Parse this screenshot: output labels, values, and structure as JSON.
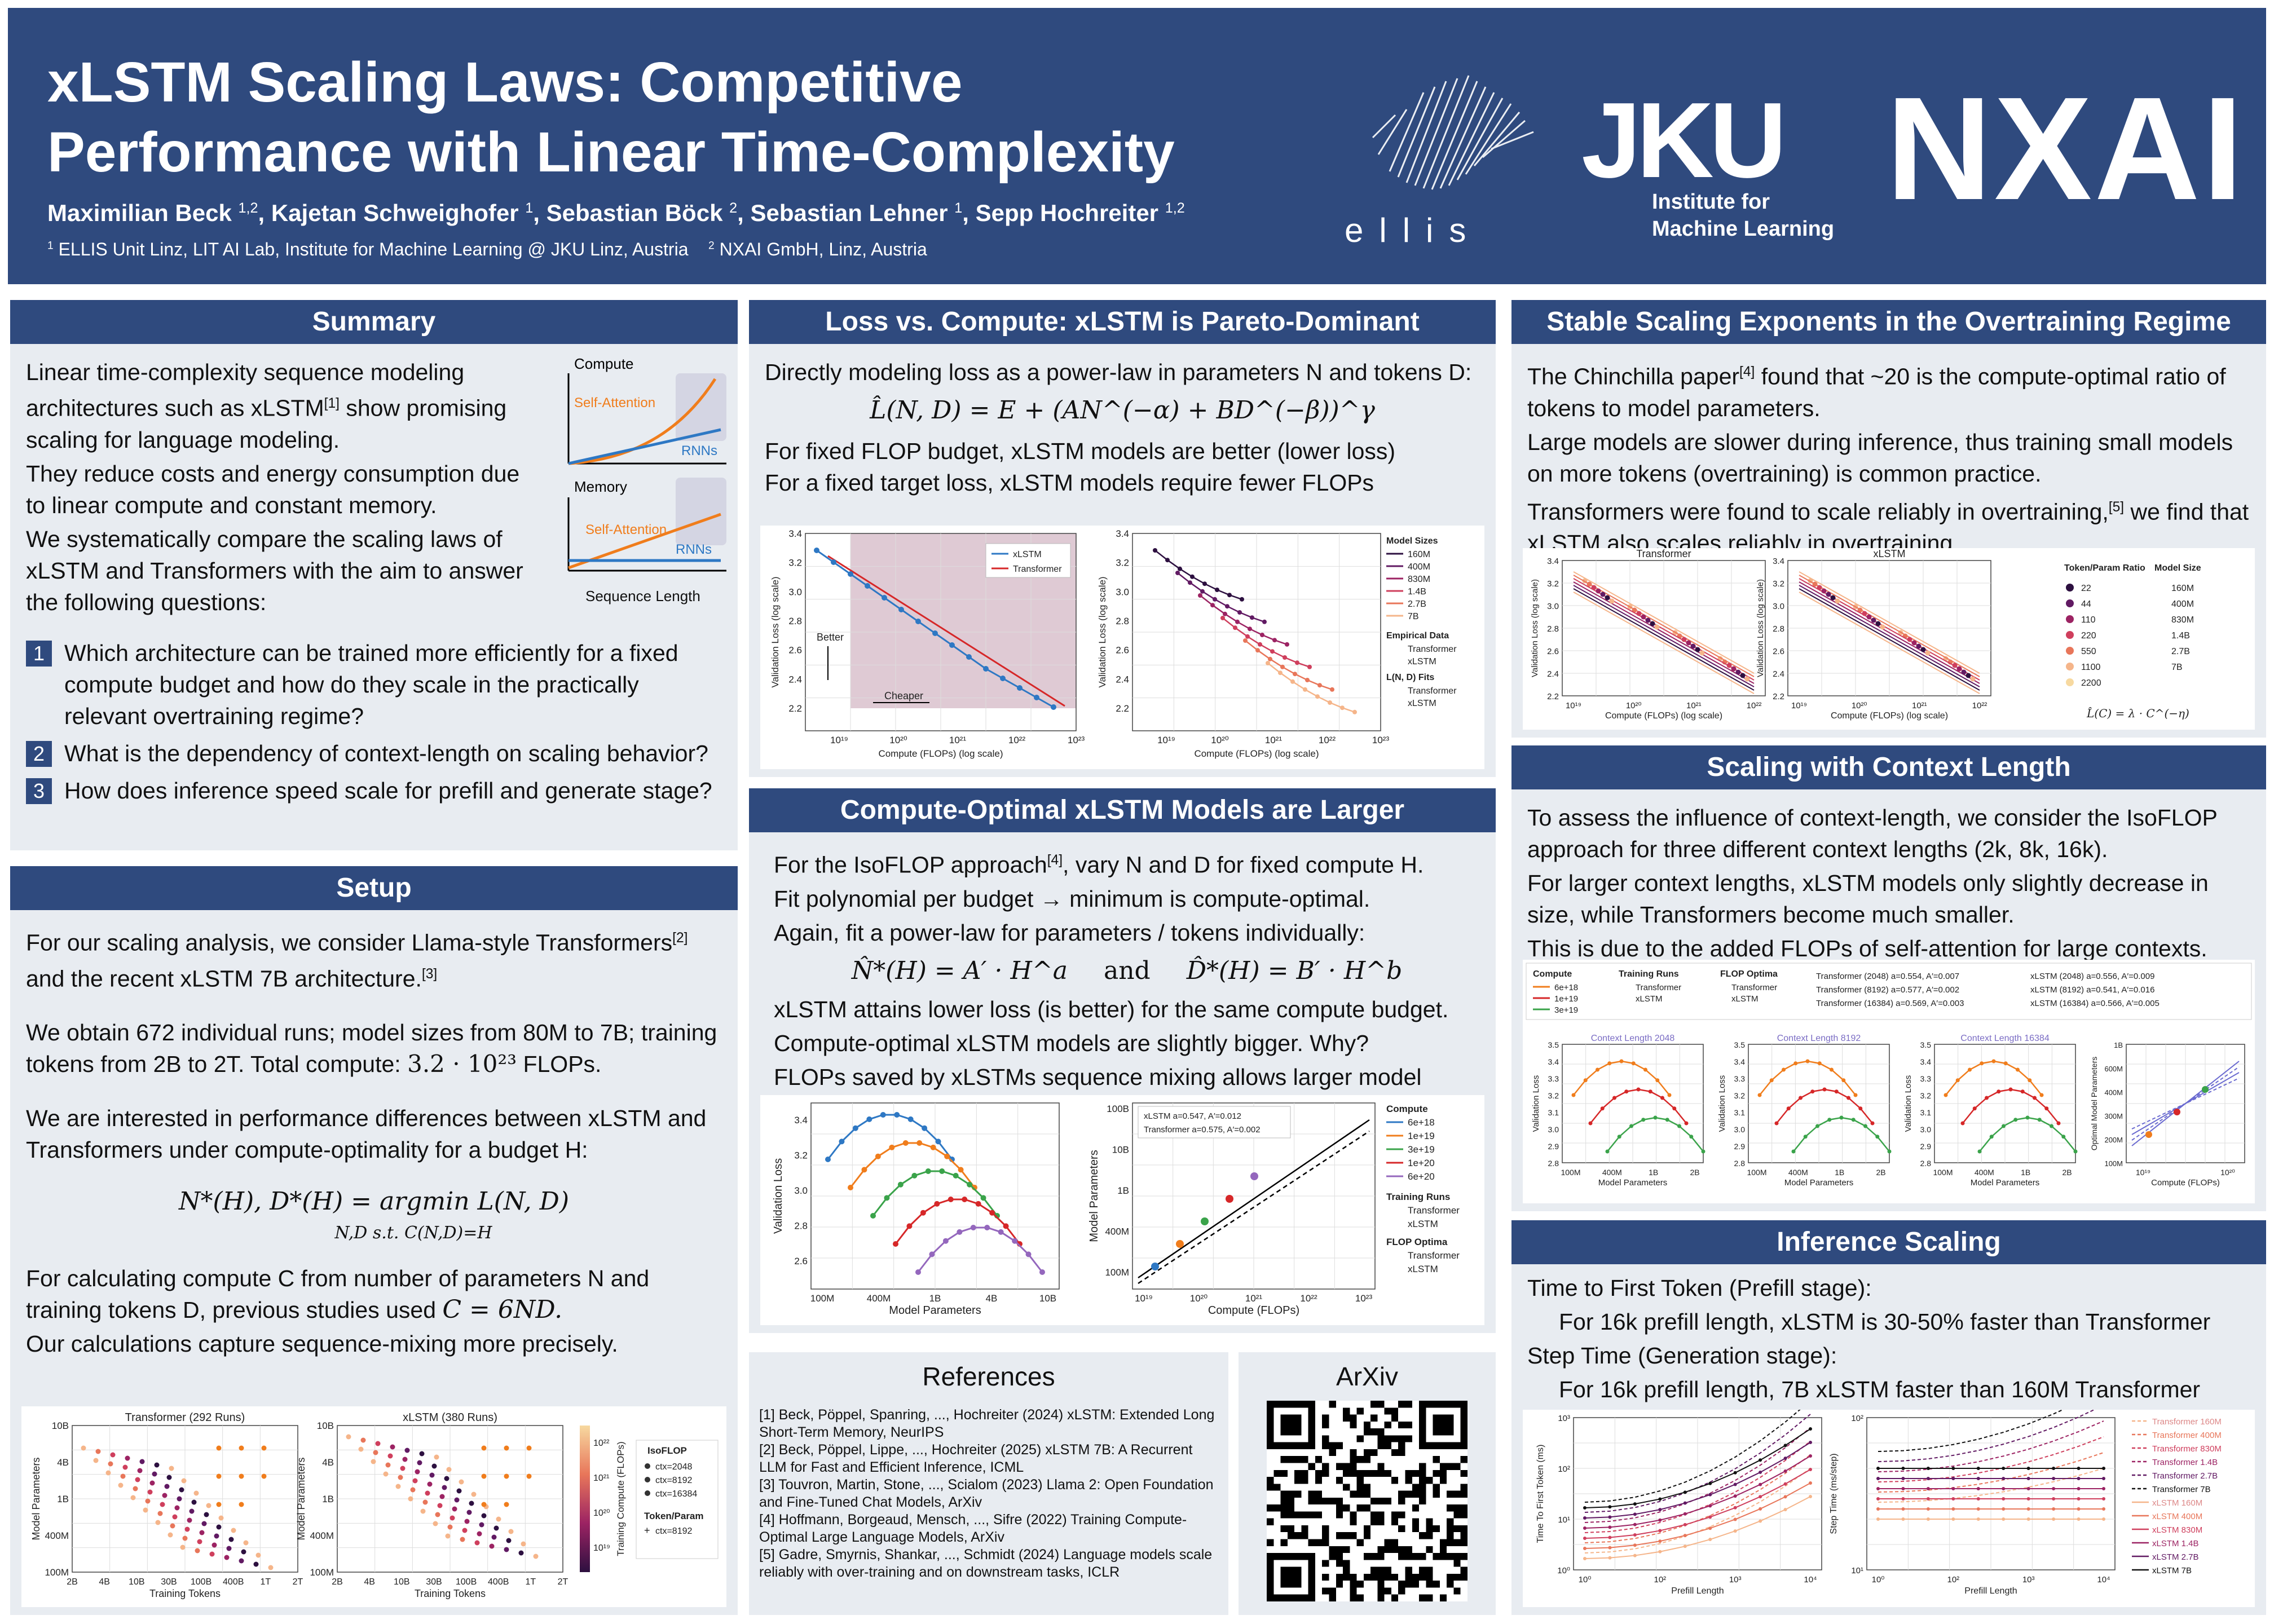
{
  "header": {
    "title_line1": "xLSTM Scaling Laws: Competitive",
    "title_line2": "Performance with Linear Time-Complexity",
    "authors": [
      {
        "name": "Maximilian Beck",
        "aff": "1,2"
      },
      {
        "name": "Kajetan Schweighofer",
        "aff": "1"
      },
      {
        "name": "Sebastian Böck",
        "aff": "2"
      },
      {
        "name": "Sebastian Lehner",
        "aff": "1"
      },
      {
        "name": "Sepp Hochreiter",
        "aff": "1,2"
      }
    ],
    "aff1_num": "1",
    "aff1": "ELLIS Unit Linz, LIT AI Lab, Institute for Machine Learning @ JKU Linz, Austria",
    "aff2_num": "2",
    "aff2": "NXAI GmbH, Linz, Austria",
    "ellis": "ellis",
    "jku": "JKU",
    "jku_sub1": "Institute for",
    "jku_sub2": "Machine Learning",
    "nxai": "NXAI"
  },
  "summary": {
    "title": "Summary",
    "intro_1": "Linear time-complexity sequence modeling architectures such as xLSTM",
    "intro_ref": "[1]",
    "intro_2": " show promising scaling for language modeling.",
    "intro_3": "They reduce costs and energy consumption due to linear compute and constant memory.",
    "intro_4a": "We systematically compare the ",
    "intro_4b": "scaling laws",
    "intro_4c": " of xLSTM and Transformers with the aim to answer the following questions:",
    "q1_num": "1",
    "q1a": "Which architecture can be ",
    "q1b": "trained more efficiently",
    "q1c": " for a fixed compute budget and how do they scale in the practically relevant ",
    "q1d": "overtraining regime",
    "q1e": "?",
    "q2_num": "2",
    "q2a": "What is the dependency of ",
    "q2b": "context-length",
    "q2c": " on scaling behavior?",
    "q3_num": "3",
    "q3a": "How does ",
    "q3b": "inference speed",
    "q3c": " scale for prefill and generate stage?",
    "fig": {
      "compute": "Compute",
      "memory": "Memory",
      "attn": "Self-Attention",
      "rnns": "RNNs",
      "seqlen": "Sequence Length"
    }
  },
  "setup": {
    "title": "Setup",
    "p1a": "For our scaling analysis, we consider Llama-style Transformers",
    "p1ref": "[2]",
    "p1b": " and the recent xLSTM 7B architecture.",
    "p1ref2": "[3]",
    "p2a": "We obtain 672 individual runs; model sizes from 80M to 7B; training tokens from 2B to 2T. Total compute: ",
    "p2b": "3.2 · 10²³",
    "p2c": " FLOPs.",
    "p3": "We are interested in performance differences between xLSTM and Transformers under compute-optimality for a budget H:",
    "formula": "N*(H), D*(H) = argmin L(N, D)",
    "formula_sub": "N,D s.t. C(N,D)=H",
    "p4a": "For calculating compute C from number of parameters N and training tokens D, previous studies used ",
    "p4b": "C = 6ND.",
    "p5": "Our calculations capture sequence-mixing more precisely.",
    "fig": {
      "t_title": "Transformer (292 Runs)",
      "x_title": "xLSTM (380 Runs)",
      "ylabel": "Model Parameters",
      "xlabel": "Training Tokens",
      "yticks": [
        "10B",
        "4B",
        "1B",
        "400M",
        "100M"
      ],
      "xticks": [
        "2B",
        "4B",
        "10B",
        "30B",
        "100B",
        "400B",
        "1T",
        "2T"
      ],
      "cbar": "Training Compute (FLOPs)",
      "cbar_ticks": [
        "10²²",
        "10²¹",
        "10²⁰",
        "10¹⁹"
      ],
      "leg_isoflop": "IsoFLOP",
      "leg_ctx": [
        "ctx=2048",
        "ctx=8192",
        "ctx=16384"
      ],
      "leg_tp": "Token/Param",
      "leg_tp_ctx": "ctx=8192"
    }
  },
  "loss_compute": {
    "title": "Loss vs. Compute: xLSTM is Pareto-Dominant",
    "p1": "Directly modeling loss as a power-law in parameters N and tokens D:",
    "formula": "L̂(N, D) = E + (AN^(−α) + BD^(−β))^γ",
    "p2": "For fixed FLOP budget, xLSTM models are better (lower loss)",
    "p3": "For a fixed target loss, xLSTM models require fewer FLOPs",
    "fig": {
      "ylabel": "Validation Loss (log scale)",
      "xlabel": "Compute (FLOPs) (log scale)",
      "yticks": [
        "3.4",
        "3.2",
        "3.0",
        "2.8",
        "2.6",
        "2.4",
        "2.2"
      ],
      "xticks": [
        "10¹⁹",
        "10²⁰",
        "10²¹",
        "10²²",
        "10²³"
      ],
      "better": "Better",
      "cheaper": "Cheaper",
      "leg_xlstm": "xLSTM",
      "leg_transformer": "Transformer",
      "sizes_title": "Model Sizes",
      "sizes": [
        "160M",
        "400M",
        "830M",
        "1.4B",
        "2.7B",
        "7B"
      ],
      "emp_title": "Empirical Data",
      "fits_title": "L(N, D) Fits"
    }
  },
  "compute_optimal": {
    "title": "Compute-Optimal xLSTM Models are Larger",
    "p1a": "For the ",
    "p1b": "IsoFLOP",
    "p1c": " approach",
    "p1ref": "[4]",
    "p1d": ", vary N and D for fixed compute H.",
    "p2": "Fit polynomial per budget → minimum is compute-optimal.",
    "p3": "Again, fit a power-law for parameters / tokens individually:",
    "formula_a": "N̂*(H) = A′ · H^a",
    "formula_and": "and",
    "formula_b": "D̂*(H) = B′ · H^b",
    "p4a": "xLSTM attains ",
    "p4b": "lower loss",
    "p4c": " (is better) for the same compute budget.",
    "p5a": "Compute-optimal xLSTM models are ",
    "p5b": "slightly bigger",
    "p5c": ". Why?",
    "p6": "FLOPs saved by xLSTMs sequence mixing allows larger model sizes.",
    "fig": {
      "ylabel1": "Validation Loss",
      "xlabel1": "Model Parameters",
      "yticks1": [
        "3.4",
        "3.2",
        "3.0",
        "2.8",
        "2.6"
      ],
      "xticks1": [
        "100M",
        "400M",
        "1B",
        "4B",
        "10B"
      ],
      "ylabel2": "Model Parameters",
      "xlabel2": "Compute (FLOPs)",
      "yticks2": [
        "100B",
        "10B",
        "1B",
        "400M",
        "100M"
      ],
      "xticks2": [
        "10¹⁹",
        "10²⁰",
        "10²¹",
        "10²²",
        "10²³"
      ],
      "fit_x": "xLSTM a=0.547, A′=0.012",
      "fit_t": "Transformer a=0.575, A′=0.002",
      "leg_compute": "Compute",
      "budgets": [
        "6e+18",
        "1e+19",
        "3e+19",
        "1e+20",
        "6e+20"
      ],
      "leg_runs": "Training Runs",
      "leg_opt": "FLOP Optima",
      "transformer": "Transformer",
      "xlstm": "xLSTM"
    }
  },
  "references": {
    "title": "References",
    "items": [
      "[1] Beck, Pöppel, Spanring, ..., Hochreiter (2024) xLSTM: Extended Long Short-Term Memory, NeurIPS",
      "[2] Beck, Pöppel, Lippe, ..., Hochreiter (2025) xLSTM 7B: A Recurrent LLM for Fast and Efficient Inference, ICML",
      "[3] Touvron, Martin, Stone, ..., Scialom (2023) Llama 2: Open Foundation and Fine-Tuned Chat Models, ArXiv",
      "[4] Hoffmann, Borgeaud, Mensch, ..., Sifre (2022) Training Compute-Optimal Large Language Models, ArXiv",
      "[5] Gadre, Smyrnis, Shankar, ..., Schmidt (2024) Language models scale reliably with over-training and on    downstream tasks, ICLR"
    ]
  },
  "arxiv": {
    "title": "ArXiv"
  },
  "stable": {
    "title": "Stable Scaling Exponents in the Overtraining Regime",
    "p1a": "The Chinchilla paper",
    "p1ref": "[4]",
    "p1b": " found that ~20 is the compute-optimal ratio of tokens to model parameters.",
    "p2": "Large models are slower during inference, thus training small models on more tokens (overtraining) is common practice.",
    "p3a": "Transformers were found to scale reliably in overtraining,",
    "p3ref": "[5]",
    "p3b": " we find that xLSTM also ",
    "p3c": "scales reliably in overtraining",
    "p3d": ".",
    "fig": {
      "t_title": "Transformer",
      "x_title": "xLSTM",
      "ylabel": "Validation Loss (log scale)",
      "xlabel": "Compute (FLOPs) (log scale)",
      "yticks": [
        "3.4",
        "3.2",
        "3.0",
        "2.8",
        "2.6",
        "2.4",
        "2.2"
      ],
      "xticks": [
        "10¹⁹",
        "10²⁰",
        "10²¹",
        "10²²"
      ],
      "ratio_title": "Token/Param Ratio",
      "ratios": [
        "22",
        "44",
        "110",
        "220",
        "550",
        "1100",
        "2200"
      ],
      "size_title": "Model Size",
      "sizes": [
        "160M",
        "400M",
        "830M",
        "1.4B",
        "2.7B",
        "7B"
      ],
      "formula": "L̂(C) = λ · C^(−η)"
    }
  },
  "context": {
    "title": "Scaling with Context Length",
    "p1a": "To assess the influence of context-length, we consider the ",
    "p1b": "IsoFLOP",
    "p1c": " approach for three different context lengths (2k, 8k, 16k).",
    "p2a": "For larger context lengths, xLSTM models only slightly decrease in size, while ",
    "p2b": "Transformers become much smaller",
    "p2c": ".",
    "p3": "This is due to the added FLOPs of self-attention for large contexts.",
    "fig": {
      "leg_compute": "Compute",
      "budgets": [
        "6e+18",
        "1e+19",
        "3e+19"
      ],
      "leg_runs": "Training Runs",
      "leg_opt": "FLOP Optima",
      "transformer": "Transformer",
      "xlstm": "xLSTM",
      "fits": [
        "Transformer (2048) a=0.554, A′=0.007",
        "Transformer (8192) a=0.577, A′=0.002",
        "Transformer (16384) a=0.569, A′=0.003",
        "xLSTM (2048) a=0.556, A′=0.009",
        "xLSTM (8192) a=0.541, A′=0.016",
        "xLSTM (16384) a=0.566, A′=0.005"
      ],
      "ctx_titles": [
        "Context Length 2048",
        "Context Length 8192",
        "Context Length 16384"
      ],
      "ylabel": "Validation Loss",
      "xlabel": "Model Parameters",
      "yticks": [
        "3.5",
        "3.4",
        "3.3",
        "3.2",
        "3.1",
        "3.0",
        "2.9",
        "2.8"
      ],
      "xticks": [
        "100M",
        "400M",
        "1B",
        "2B"
      ],
      "ylabel4": "Optimal Model Parameters",
      "xlabel4": "Compute (FLOPs)",
      "yticks4": [
        "1B",
        "600M",
        "400M",
        "300M",
        "200M",
        "100M"
      ],
      "xticks4": [
        "10¹⁹",
        "10²⁰"
      ]
    }
  },
  "inference": {
    "title": "Inference Scaling",
    "l1a": "Time to First Token (",
    "l1b": "Prefill",
    "l1c": " stage):",
    "l2": "For 16k prefill length, xLSTM is 30-50% faster than Transformer",
    "l3a": "Step Time (",
    "l3b": "Generation",
    "l3c": " stage):",
    "l4": "For 16k prefill length, 7B xLSTM faster than 160M Transformer",
    "fig": {
      "ylabel1": "Time To First Token (ms)",
      "ylabel2": "Step Time (ms/step)",
      "xlabel": "Prefill Length",
      "yticks1": [
        "10³",
        "10²",
        "10¹",
        "10⁰"
      ],
      "yticks2": [
        "10²",
        "10¹"
      ],
      "xticks": [
        "10⁰",
        "10²",
        "10³",
        "10⁴"
      ],
      "legend": [
        "Transformer 160M",
        "Transformer 400M",
        "Transformer 830M",
        "Transformer 1.4B",
        "Transformer 2.7B",
        "Transformer 7B",
        "xLSTM 160M",
        "xLSTM 400M",
        "xLSTM 830M",
        "xLSTM 1.4B",
        "xLSTM 2.7B",
        "xLSTM 7B"
      ]
    }
  },
  "colors": {
    "header_bg": "#2f4a7e",
    "panel_bg": "#e8ecf1",
    "xlstm_blue": "#2e78c4",
    "transformer_red": "#d62728",
    "orange": "#f07d1c",
    "green": "#3aa34a"
  }
}
